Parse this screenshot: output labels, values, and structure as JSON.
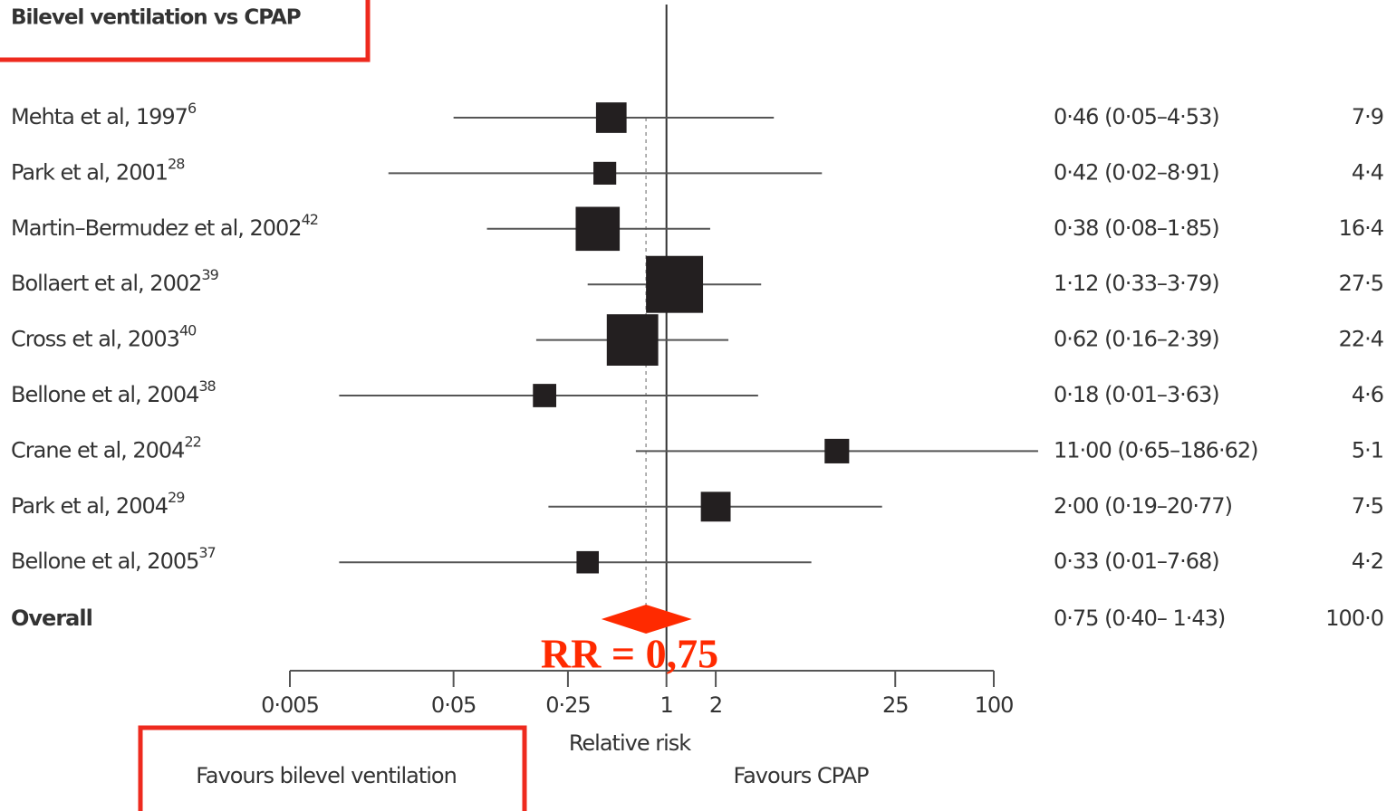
{
  "chart_data": {
    "type": "forest",
    "title": "Bilevel ventilation vs CPAP",
    "xlabel": "Relative risk",
    "left_note": "Favours bilevel ventilation",
    "right_note": "Favours CPAP",
    "annotation": "RR = 0,75",
    "log_x": true,
    "xlim": [
      0.005,
      100
    ],
    "xticks": [
      {
        "value": 0.005,
        "label": "0·005"
      },
      {
        "value": 0.05,
        "label": "0·05"
      },
      {
        "value": 0.25,
        "label": "0·25"
      },
      1,
      2,
      25,
      100
    ],
    "reference_line": 1,
    "color": "#231f20",
    "overall_color": "#ff2a00",
    "categories": [
      "Mehta et al, 1997",
      "Park et al, 2001",
      "Martin–Bermudez et al, 2002",
      "Bollaert et al, 2002",
      "Cross et al, 2003",
      "Bellone et al, 2004",
      "Crane et al, 2004",
      "Park et al, 2004",
      "Bellone et al, 2005"
    ],
    "refs": [
      "6",
      "28",
      "42",
      "39",
      "40",
      "38",
      "22",
      "29",
      "37"
    ],
    "values": [
      0.46,
      0.42,
      0.38,
      1.12,
      0.62,
      0.18,
      11.0,
      2.0,
      0.33
    ],
    "lower": [
      0.05,
      0.02,
      0.08,
      0.33,
      0.16,
      0.01,
      0.65,
      0.19,
      0.01
    ],
    "upper": [
      4.53,
      8.91,
      1.85,
      3.79,
      2.39,
      3.63,
      186.62,
      20.77,
      7.68
    ],
    "value_labels": [
      "0·46 (0·05–4·53)",
      "0·42 (0·02–8·91)",
      "0·38 (0·08–1·85)",
      "1·12 (0·33–3·79)",
      "0·62 (0·16–2·39)",
      "0·18 (0·01–3·63)",
      "11·00 (0·65–186·62)",
      "2·00 (0·19–20·77)",
      "0·33 (0·01–7·68)"
    ],
    "weights": [
      7.9,
      4.4,
      16.4,
      27.5,
      22.4,
      4.6,
      5.1,
      7.5,
      4.2
    ],
    "weight_labels": [
      "7·9",
      "4·4",
      "16·4",
      "27·5",
      "22·4",
      "4·6",
      "5·1",
      "7·5",
      "4·2"
    ],
    "overall": {
      "label": "Overall",
      "value": 0.75,
      "lower": 0.4,
      "upper": 1.43,
      "value_label": "0·75 (0·40– 1·43)",
      "weight": 100.0,
      "weight_label": "100·0"
    }
  }
}
